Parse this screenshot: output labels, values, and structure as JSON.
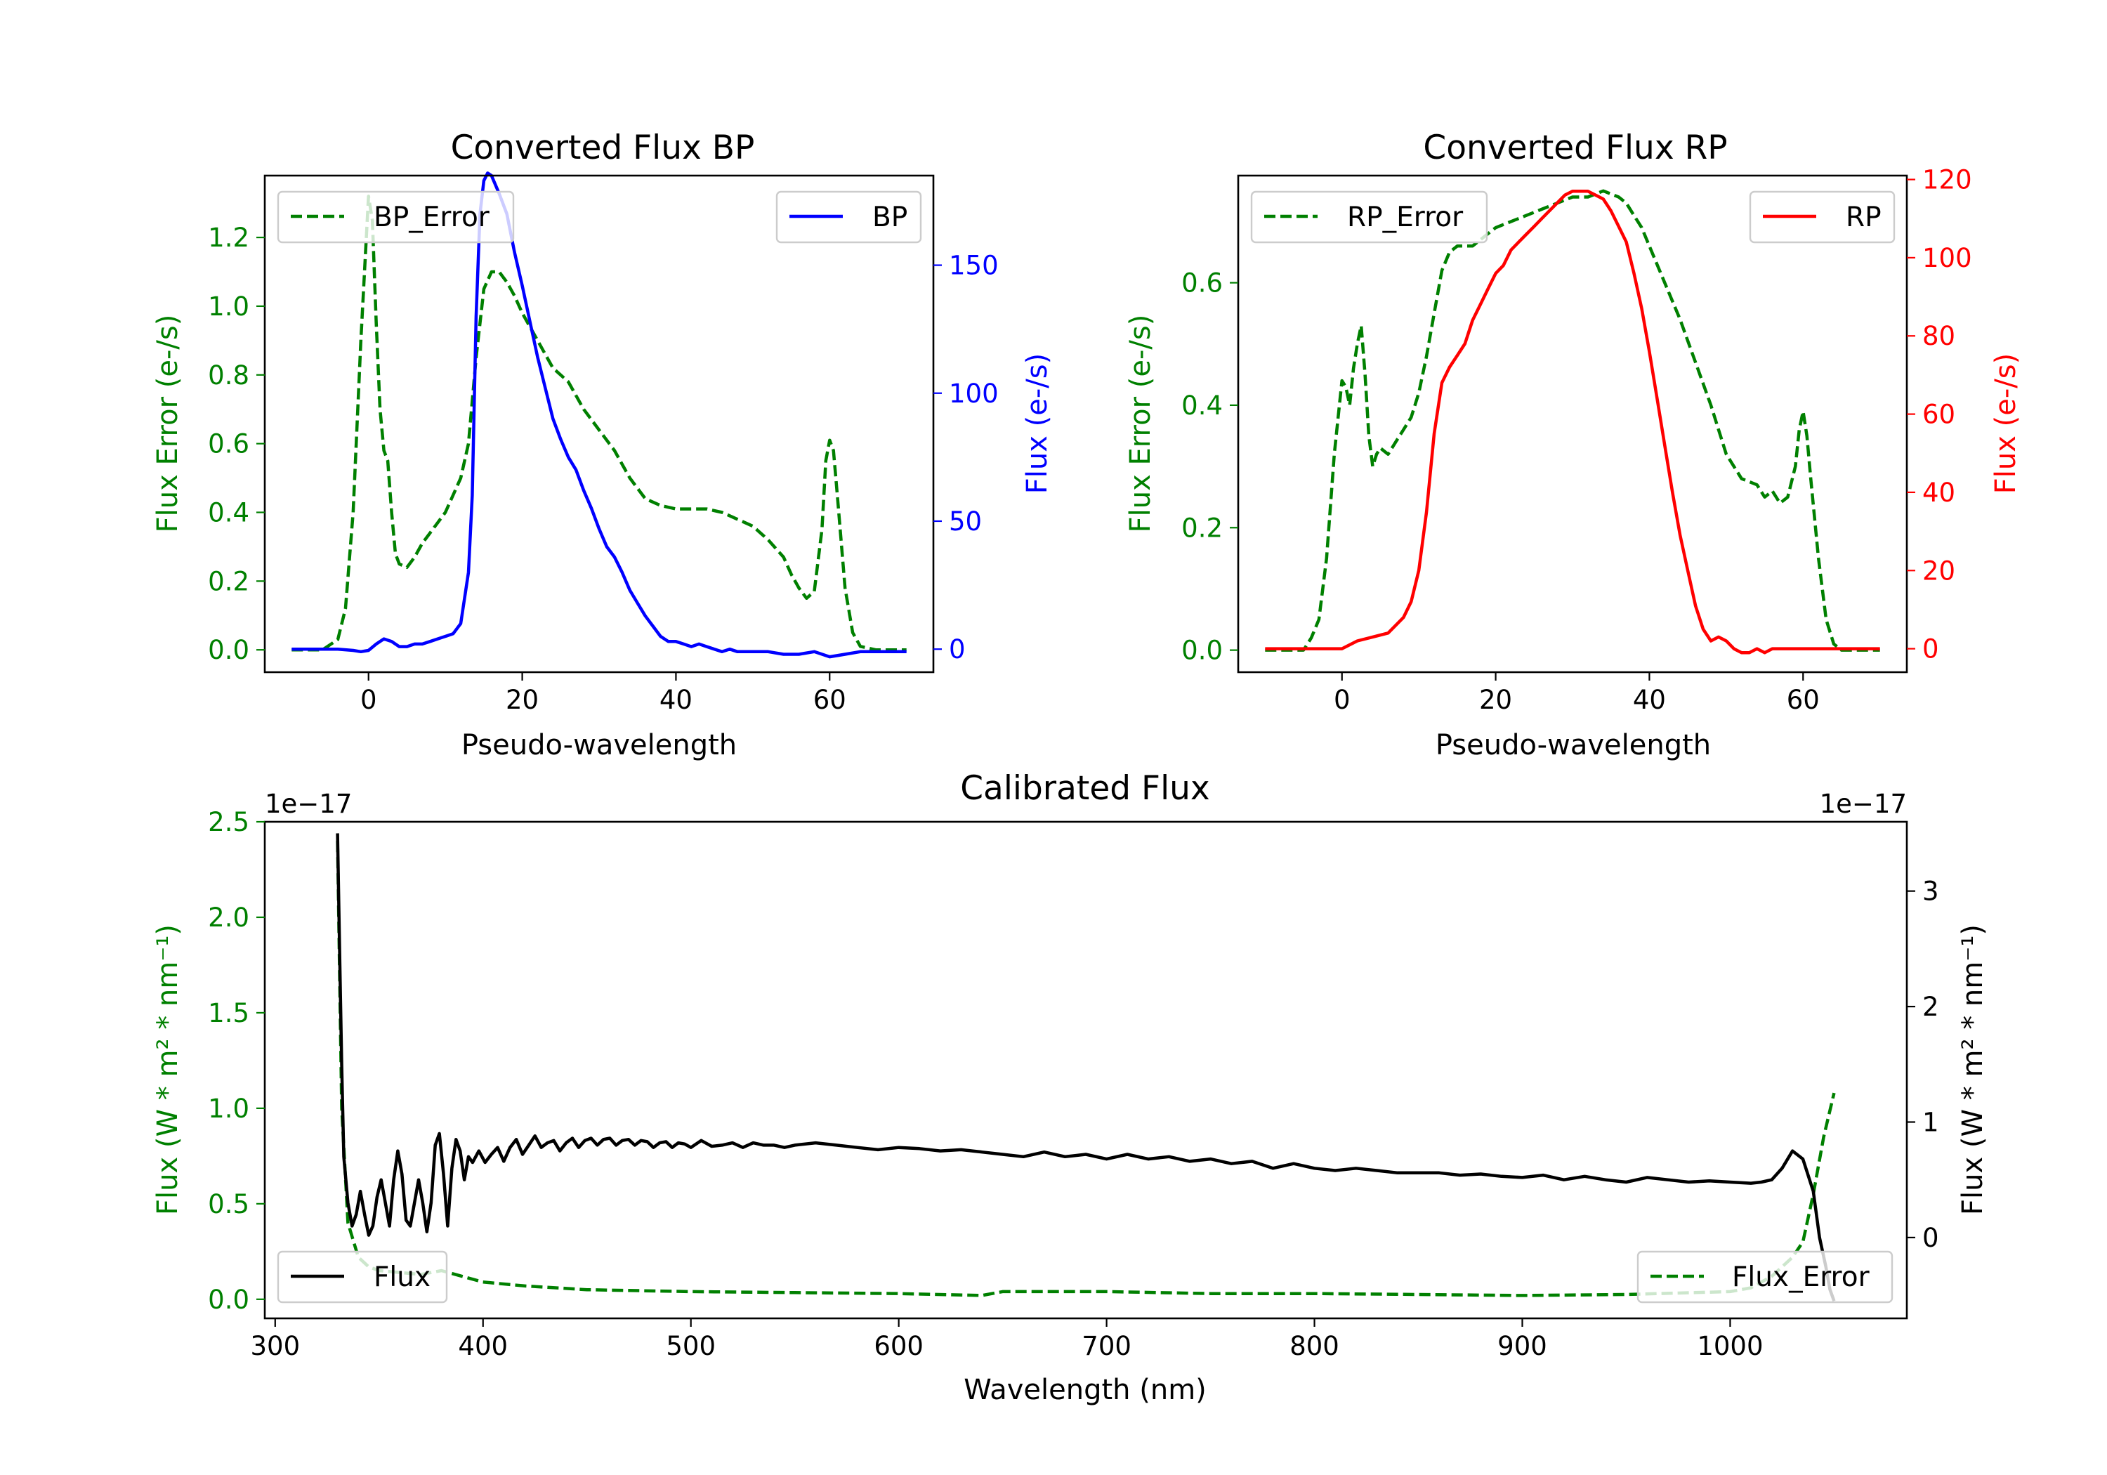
{
  "colors": {
    "green": "#008000",
    "blue": "#0000ff",
    "red": "#ff0000",
    "black": "#000000"
  },
  "chart_data": [
    {
      "id": "bp",
      "type": "line",
      "title": "Converted Flux BP",
      "xlabel": "Pseudo-wavelength",
      "xlim": [
        -13.5,
        73.5
      ],
      "xticks": [
        0,
        20,
        40,
        60
      ],
      "left_axis": {
        "label": "Flux Error (e-/s)",
        "color": "#008000",
        "ylim": [
          -0.065,
          1.38
        ],
        "ticks": [
          0.0,
          0.2,
          0.4,
          0.6,
          0.8,
          1.0,
          1.2
        ],
        "tick_labels": [
          "0.0",
          "0.2",
          "0.4",
          "0.6",
          "0.8",
          "1.0",
          "1.2"
        ]
      },
      "right_axis": {
        "label": "Flux (e-/s)",
        "color": "#0000ff",
        "ylim": [
          -9,
          185
        ],
        "ticks": [
          0,
          50,
          100,
          150
        ],
        "tick_labels": [
          "0",
          "50",
          "100",
          "150"
        ]
      },
      "series": [
        {
          "name": "BP_Error",
          "axis": "left",
          "style": "dashed",
          "color": "#008000",
          "x": [
            -10,
            -6,
            -4,
            -3,
            -2,
            -1,
            0,
            0.5,
            1,
            1.5,
            2,
            2.5,
            3,
            3.5,
            4,
            5,
            6,
            7,
            8,
            9,
            10,
            11,
            12,
            13,
            14,
            15,
            16,
            17,
            18,
            19,
            20,
            22,
            24,
            26,
            28,
            30,
            32,
            34,
            36,
            38,
            40,
            42,
            44,
            46,
            48,
            50,
            52,
            54,
            55,
            56,
            57,
            58,
            59,
            59.5,
            60,
            60.5,
            61,
            62,
            63,
            64,
            66,
            70
          ],
          "y": [
            0.0,
            0.0,
            0.03,
            0.12,
            0.4,
            0.9,
            1.32,
            1.25,
            0.95,
            0.7,
            0.58,
            0.55,
            0.4,
            0.28,
            0.25,
            0.24,
            0.27,
            0.31,
            0.34,
            0.37,
            0.4,
            0.45,
            0.5,
            0.6,
            0.85,
            1.05,
            1.1,
            1.1,
            1.07,
            1.03,
            0.98,
            0.9,
            0.82,
            0.78,
            0.7,
            0.64,
            0.58,
            0.5,
            0.44,
            0.42,
            0.41,
            0.41,
            0.41,
            0.4,
            0.38,
            0.36,
            0.32,
            0.27,
            0.22,
            0.18,
            0.15,
            0.17,
            0.35,
            0.55,
            0.61,
            0.58,
            0.45,
            0.18,
            0.05,
            0.01,
            0.0,
            0.0
          ]
        },
        {
          "name": "BP",
          "axis": "right",
          "style": "solid",
          "color": "#0000ff",
          "x": [
            -10,
            -4,
            -2,
            -1,
            0,
            1,
            2,
            3,
            4,
            5,
            6,
            7,
            8,
            9,
            10,
            11,
            12,
            13,
            13.5,
            14,
            14.5,
            15,
            15.5,
            16,
            17,
            18,
            19,
            20,
            21,
            22,
            23,
            24,
            25,
            26,
            27,
            28,
            29,
            30,
            31,
            32,
            33,
            34,
            35,
            36,
            37,
            38,
            39,
            40,
            41,
            42,
            43,
            44,
            45,
            46,
            47,
            48,
            50,
            52,
            54,
            56,
            58,
            60,
            62,
            64,
            66,
            70
          ],
          "y": [
            0,
            0,
            -0.5,
            -1,
            -0.5,
            2,
            4,
            3,
            1,
            1,
            2,
            2,
            3,
            4,
            5,
            6,
            10,
            30,
            60,
            130,
            170,
            183,
            186,
            185,
            178,
            170,
            155,
            142,
            128,
            114,
            102,
            90,
            82,
            75,
            70,
            62,
            55,
            47,
            40,
            36,
            30,
            23,
            18,
            13,
            9,
            5,
            3,
            3,
            2,
            1,
            2,
            1,
            0,
            -1,
            0,
            -1,
            -1,
            -1,
            -2,
            -2,
            -1,
            -3,
            -2,
            -1,
            -1,
            -1
          ]
        }
      ],
      "legend_left": [
        {
          "label": "BP_Error",
          "style": "dashed",
          "color": "#008000",
          "position": "upper left"
        }
      ],
      "legend_right": [
        {
          "label": "BP",
          "style": "solid",
          "color": "#0000ff",
          "position": "upper right"
        }
      ]
    },
    {
      "id": "rp",
      "type": "line",
      "title": "Converted Flux RP",
      "xlabel": "Pseudo-wavelength",
      "xlim": [
        -13.5,
        73.5
      ],
      "xticks": [
        0,
        20,
        40,
        60
      ],
      "left_axis": {
        "label": "Flux Error (e-/s)",
        "color": "#008000",
        "ylim": [
          -0.036,
          0.775
        ],
        "ticks": [
          0.0,
          0.2,
          0.4,
          0.6
        ],
        "tick_labels": [
          "0.0",
          "0.2",
          "0.4",
          "0.6"
        ]
      },
      "right_axis": {
        "label": "Flux (e-/s)",
        "color": "#ff0000",
        "ylim": [
          -6,
          121
        ],
        "ticks": [
          0,
          20,
          40,
          60,
          80,
          100,
          120
        ],
        "tick_labels": [
          "0",
          "20",
          "40",
          "60",
          "80",
          "100",
          "120"
        ]
      },
      "series": [
        {
          "name": "RP_Error",
          "axis": "left",
          "style": "dashed",
          "color": "#008000",
          "x": [
            -10,
            -5,
            -4,
            -3,
            -2,
            -1,
            0,
            0.5,
            1,
            1.5,
            2,
            2.5,
            3,
            3.5,
            4,
            4.5,
            5,
            6,
            7,
            8,
            9,
            10,
            11,
            12,
            13,
            14,
            15,
            16,
            17,
            18,
            19,
            20,
            22,
            24,
            26,
            28,
            30,
            32,
            34,
            36,
            37,
            38,
            39,
            40,
            42,
            44,
            46,
            48,
            50,
            52,
            54,
            55,
            56,
            57,
            58,
            59,
            59.5,
            60,
            60.5,
            61,
            62,
            63,
            64,
            65,
            70
          ],
          "y": [
            0.0,
            0.0,
            0.02,
            0.05,
            0.15,
            0.32,
            0.44,
            0.43,
            0.4,
            0.46,
            0.5,
            0.53,
            0.45,
            0.35,
            0.3,
            0.32,
            0.33,
            0.32,
            0.34,
            0.36,
            0.38,
            0.42,
            0.48,
            0.55,
            0.62,
            0.65,
            0.66,
            0.66,
            0.66,
            0.67,
            0.68,
            0.69,
            0.7,
            0.71,
            0.72,
            0.73,
            0.74,
            0.74,
            0.75,
            0.74,
            0.73,
            0.71,
            0.69,
            0.66,
            0.6,
            0.54,
            0.47,
            0.4,
            0.32,
            0.28,
            0.27,
            0.25,
            0.26,
            0.24,
            0.25,
            0.3,
            0.36,
            0.39,
            0.35,
            0.28,
            0.15,
            0.05,
            0.01,
            0.0,
            0.0
          ]
        },
        {
          "name": "RP",
          "axis": "right",
          "style": "solid",
          "color": "#ff0000",
          "x": [
            -10,
            -5,
            0,
            2,
            4,
            6,
            8,
            9,
            10,
            11,
            12,
            13,
            14,
            15,
            16,
            17,
            18,
            19,
            20,
            21,
            22,
            23,
            24,
            25,
            26,
            27,
            28,
            29,
            30,
            31,
            32,
            33,
            34,
            35,
            36,
            37,
            38,
            39,
            40,
            41,
            42,
            43,
            44,
            45,
            46,
            47,
            48,
            49,
            50,
            51,
            52,
            53,
            54,
            55,
            56,
            58,
            60,
            62,
            64,
            66,
            70
          ],
          "y": [
            0,
            0,
            0,
            2,
            3,
            4,
            8,
            12,
            20,
            35,
            55,
            68,
            72,
            75,
            78,
            84,
            88,
            92,
            96,
            98,
            102,
            104,
            106,
            108,
            110,
            112,
            114,
            116,
            117,
            117,
            117,
            116,
            115,
            112,
            108,
            104,
            96,
            87,
            76,
            64,
            52,
            40,
            29,
            20,
            11,
            5,
            2,
            3,
            2,
            0,
            -1,
            -1,
            0,
            -1,
            0,
            0,
            0,
            0,
            0,
            0,
            0
          ]
        }
      ],
      "legend_left": [
        {
          "label": "RP_Error",
          "style": "dashed",
          "color": "#008000",
          "position": "upper left"
        }
      ],
      "legend_right": [
        {
          "label": "RP",
          "style": "solid",
          "color": "#ff0000",
          "position": "upper right"
        }
      ]
    },
    {
      "id": "cal",
      "type": "line",
      "title": "Calibrated Flux",
      "xlabel": "Wavelength (nm)",
      "xlim": [
        295,
        1085
      ],
      "xticks": [
        300,
        400,
        500,
        600,
        700,
        800,
        900,
        1000
      ],
      "left_axis": {
        "label": "Flux (W * m² * nm⁻¹)",
        "color": "#008000",
        "offset_text": "1e−17",
        "ylim": [
          -0.1,
          2.5
        ],
        "ticks": [
          0.0,
          0.5,
          1.0,
          1.5,
          2.0,
          2.5
        ],
        "tick_labels": [
          "0.0",
          "0.5",
          "1.0",
          "1.5",
          "2.0",
          "2.5"
        ]
      },
      "right_axis": {
        "label": "Flux (W * m² * nm⁻¹)",
        "color": "#000000",
        "offset_text": "1e−17",
        "ylim": [
          -0.7,
          3.6
        ],
        "ticks": [
          0,
          1,
          2,
          3
        ],
        "tick_labels": [
          "0",
          "1",
          "2",
          "3"
        ]
      },
      "series": [
        {
          "name": "Flux_Error",
          "axis": "left",
          "style": "dashed",
          "color": "#008000",
          "x": [
            330,
            332,
            335,
            340,
            345,
            350,
            360,
            370,
            380,
            390,
            400,
            420,
            450,
            500,
            550,
            600,
            640,
            650,
            700,
            750,
            800,
            850,
            900,
            950,
            1000,
            1010,
            1020,
            1030,
            1035,
            1040,
            1045,
            1050
          ],
          "y": [
            2.4,
            1.0,
            0.4,
            0.22,
            0.17,
            0.15,
            0.14,
            0.13,
            0.15,
            0.12,
            0.09,
            0.07,
            0.05,
            0.04,
            0.035,
            0.03,
            0.02,
            0.04,
            0.04,
            0.03,
            0.03,
            0.025,
            0.02,
            0.025,
            0.04,
            0.06,
            0.12,
            0.22,
            0.3,
            0.55,
            0.85,
            1.08
          ]
        },
        {
          "name": "Flux",
          "axis": "right",
          "style": "solid",
          "color": "#000000",
          "x": [
            330,
            331,
            332,
            333,
            335,
            337,
            339,
            341,
            343,
            345,
            347,
            349,
            351,
            353,
            355,
            357,
            359,
            361,
            363,
            365,
            367,
            369,
            371,
            373,
            375,
            377,
            379,
            381,
            383,
            385,
            387,
            389,
            391,
            393,
            395,
            398,
            401,
            404,
            407,
            410,
            413,
            416,
            419,
            422,
            425,
            428,
            431,
            434,
            437,
            440,
            443,
            446,
            449,
            452,
            455,
            458,
            461,
            464,
            467,
            470,
            473,
            476,
            479,
            482,
            485,
            488,
            491,
            494,
            497,
            500,
            505,
            510,
            515,
            520,
            525,
            530,
            535,
            540,
            545,
            550,
            560,
            570,
            580,
            590,
            600,
            610,
            620,
            630,
            640,
            650,
            660,
            670,
            680,
            690,
            700,
            710,
            720,
            730,
            740,
            750,
            760,
            770,
            780,
            790,
            800,
            810,
            820,
            830,
            840,
            850,
            860,
            870,
            880,
            890,
            900,
            910,
            920,
            930,
            940,
            950,
            960,
            970,
            980,
            990,
            1000,
            1010,
            1015,
            1020,
            1025,
            1030,
            1035,
            1040,
            1043,
            1046,
            1048,
            1050
          ],
          "y": [
            3.5,
            2.5,
            1.5,
            0.7,
            0.3,
            0.1,
            0.2,
            0.4,
            0.2,
            0.02,
            0.1,
            0.35,
            0.5,
            0.3,
            0.1,
            0.5,
            0.75,
            0.55,
            0.15,
            0.1,
            0.3,
            0.5,
            0.3,
            0.05,
            0.3,
            0.8,
            0.9,
            0.55,
            0.1,
            0.6,
            0.85,
            0.75,
            0.5,
            0.7,
            0.65,
            0.75,
            0.65,
            0.72,
            0.78,
            0.66,
            0.78,
            0.85,
            0.72,
            0.8,
            0.88,
            0.78,
            0.82,
            0.84,
            0.75,
            0.82,
            0.86,
            0.78,
            0.84,
            0.86,
            0.8,
            0.85,
            0.86,
            0.8,
            0.84,
            0.85,
            0.8,
            0.84,
            0.83,
            0.78,
            0.82,
            0.83,
            0.78,
            0.82,
            0.81,
            0.78,
            0.84,
            0.79,
            0.8,
            0.82,
            0.78,
            0.82,
            0.8,
            0.8,
            0.78,
            0.8,
            0.82,
            0.8,
            0.78,
            0.76,
            0.78,
            0.77,
            0.75,
            0.76,
            0.74,
            0.72,
            0.7,
            0.74,
            0.7,
            0.72,
            0.68,
            0.72,
            0.68,
            0.7,
            0.66,
            0.68,
            0.64,
            0.66,
            0.6,
            0.64,
            0.6,
            0.58,
            0.6,
            0.58,
            0.56,
            0.56,
            0.56,
            0.54,
            0.55,
            0.53,
            0.52,
            0.54,
            0.5,
            0.53,
            0.5,
            0.48,
            0.52,
            0.5,
            0.48,
            0.49,
            0.48,
            0.47,
            0.48,
            0.5,
            0.6,
            0.75,
            0.68,
            0.4,
            0.0,
            -0.25,
            -0.45,
            -0.55
          ]
        }
      ],
      "legend_left": [
        {
          "label": "Flux",
          "style": "solid",
          "color": "#000000",
          "position": "lower left"
        }
      ],
      "legend_right": [
        {
          "label": "Flux_Error",
          "style": "dashed",
          "color": "#008000",
          "position": "lower right"
        }
      ]
    }
  ]
}
